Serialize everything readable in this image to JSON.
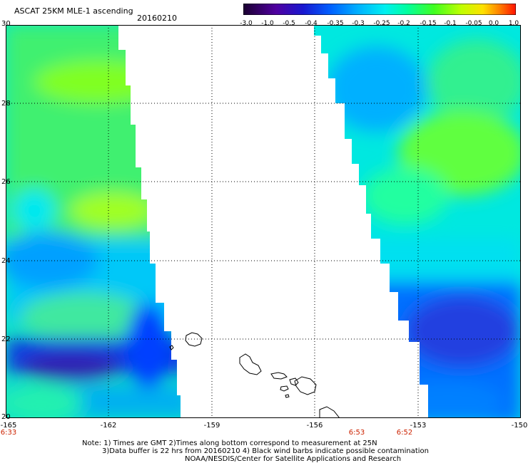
{
  "header": {
    "title": "ASCAT 25KM MLE-1 ascending",
    "date": "20160210"
  },
  "colorbar": {
    "ticks": [
      "-3.0",
      "-1.0",
      "-0.5",
      "-0.4",
      "-0.35",
      "-0.3",
      "-0.25",
      "-0.2",
      "-0.15",
      "-0.1",
      "-0.05",
      "0.0",
      "1.0"
    ],
    "colors": [
      "#2a0040",
      "#4a0090",
      "#2020d0",
      "#0050ff",
      "#0090ff",
      "#00c8ff",
      "#00f0e0",
      "#00ff90",
      "#40ff20",
      "#b0ff00",
      "#ffe000",
      "#ff8000",
      "#ff2000"
    ]
  },
  "axes": {
    "y_ticks": [
      "30",
      "28",
      "26",
      "24",
      "22",
      "20"
    ],
    "x_ticks": [
      "-165",
      "-162",
      "-159",
      "-156",
      "-153",
      "-150"
    ],
    "lat_range": [
      20,
      30
    ],
    "lon_range": [
      -165,
      -150
    ]
  },
  "pass_times": [
    "6:33",
    "6:53",
    "6:52"
  ],
  "notes": {
    "line1": "Note: 1) Times are GMT 2)Times along bottom correspond to measurement at 25N",
    "line2": "3)Data buffer is 22 hrs from 20160210 4) Black wind barbs indicate possible contamination",
    "line3": "NOAA/NESDIS/Center for Satellite Applications and Research"
  },
  "colors": {
    "swath_green": "#30f070",
    "swath_cyan": "#00f0f0",
    "swath_blue": "#0060ff",
    "swath_dark": "#2020c0",
    "coastline": "#000000"
  }
}
